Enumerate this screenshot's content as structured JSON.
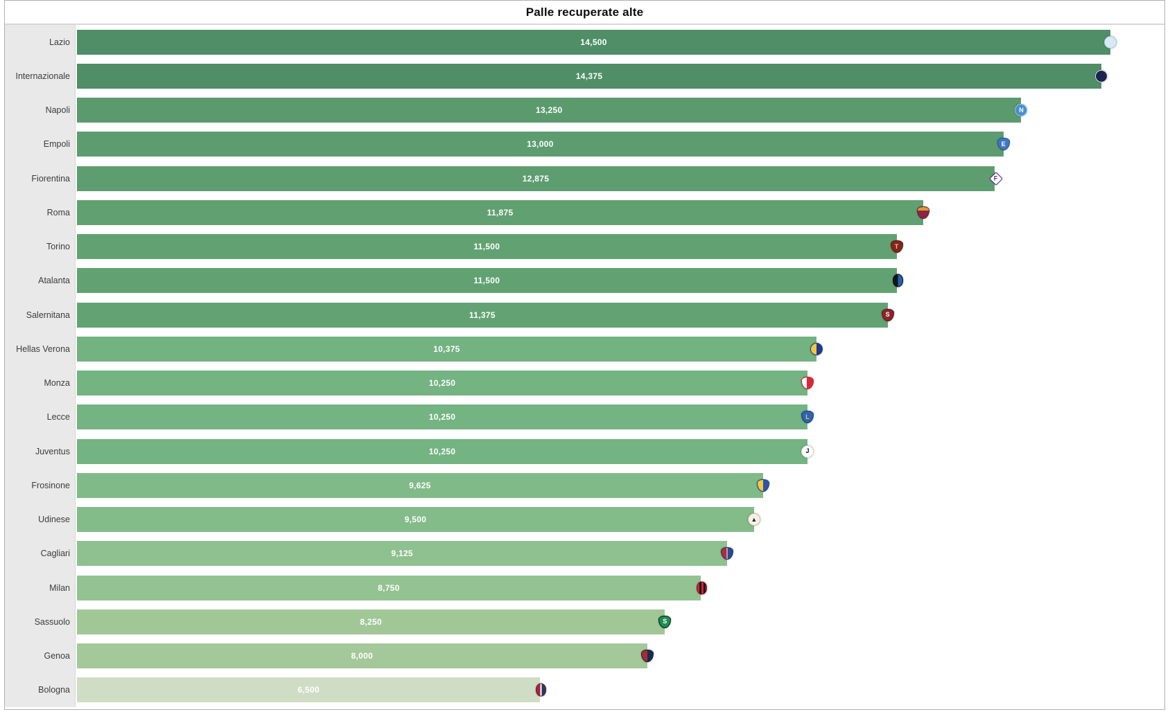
{
  "title": "Palle recuperate alte",
  "chart_data": {
    "type": "bar",
    "orientation": "horizontal",
    "title": "Palle recuperate alte",
    "categories": [
      "Lazio",
      "Internazionale",
      "Napoli",
      "Empoli",
      "Fiorentina",
      "Roma",
      "Torino",
      "Atalanta",
      "Salernitana",
      "Hellas Verona",
      "Monza",
      "Lecce",
      "Juventus",
      "Frosinone",
      "Udinese",
      "Cagliari",
      "Milan",
      "Sassuolo",
      "Genoa",
      "Bologna"
    ],
    "values": [
      14500,
      14375,
      13250,
      13000,
      12875,
      11875,
      11500,
      11500,
      11375,
      10375,
      10250,
      10250,
      10250,
      9625,
      9500,
      9125,
      8750,
      8250,
      8000,
      6500
    ],
    "value_labels": [
      "14,500",
      "14,375",
      "13,250",
      "13,000",
      "12,875",
      "11,875",
      "11,500",
      "11,500",
      "11,375",
      "10,375",
      "10,250",
      "10,250",
      "10,250",
      "9,625",
      "9,500",
      "9,125",
      "8,750",
      "8,250",
      "8,000",
      "6,500"
    ],
    "xlim": [
      0,
      14500
    ],
    "grid": false,
    "legend": "none",
    "sort": "descending",
    "value_label_position": "inside-center",
    "value_label_color": "#ffffff",
    "color_scale": {
      "high": "#4f8e66",
      "low": "#cfddc5",
      "note": "bar fill shade mapped to value, darker = higher"
    }
  },
  "teams": [
    {
      "name": "Lazio",
      "value": 14500,
      "value_label": "14,500",
      "bar_color": "#4f8e66",
      "logo": {
        "icon": "lazio-crest-icon",
        "shape": "circle",
        "background": "#d9e9f4",
        "border": "#a9cbe4",
        "letter": "",
        "letter_color": "#4a90c4"
      }
    },
    {
      "name": "Internazionale",
      "value": 14375,
      "value_label": "14,375",
      "bar_color": "#4f8e66",
      "logo": {
        "icon": "internazionale-crest-icon",
        "shape": "circle",
        "background": "#1b2350",
        "border": "#e8e6df",
        "letter": "",
        "letter_color": "#ffffff"
      }
    },
    {
      "name": "Napoli",
      "value": 13250,
      "value_label": "13,250",
      "bar_color": "#5b9a6d",
      "logo": {
        "icon": "napoli-crest-icon",
        "shape": "circle",
        "background": "#4a90cc",
        "border": "#9cc3e8",
        "letter": "N",
        "letter_color": "#ffffff"
      }
    },
    {
      "name": "Empoli",
      "value": 13000,
      "value_label": "13,000",
      "bar_color": "#5d9c6f",
      "logo": {
        "icon": "empoli-crest-icon",
        "shape": "shield",
        "background": "#3d78c2",
        "border": "#26508f",
        "letter": "E",
        "letter_color": "#ffffff"
      }
    },
    {
      "name": "Fiorentina",
      "value": 12875,
      "value_label": "12,875",
      "bar_color": "#5e9d70",
      "logo": {
        "icon": "fiorentina-crest-icon",
        "shape": "diamond",
        "background": "#ffffff",
        "border": "#5c2d84",
        "letter": "F",
        "letter_color": "#5c2d84"
      }
    },
    {
      "name": "Roma",
      "value": 11875,
      "value_label": "11,875",
      "bar_color": "#60a071",
      "logo": {
        "icon": "roma-crest-icon",
        "shape": "shield",
        "background": "linear-gradient(180deg,#d99b3a 32%,#8c2442 32%)",
        "border": "#6b1c33",
        "letter": "",
        "letter_color": "#f2d49a"
      }
    },
    {
      "name": "Torino",
      "value": 11500,
      "value_label": "11,500",
      "bar_color": "#62a272",
      "logo": {
        "icon": "torino-crest-icon",
        "shape": "shield",
        "background": "#83241f",
        "border": "#5e1713",
        "letter": "T",
        "letter_color": "#e8c87e"
      }
    },
    {
      "name": "Atalanta",
      "value": 11500,
      "value_label": "11,500",
      "bar_color": "#62a272",
      "logo": {
        "icon": "atalanta-crest-icon",
        "shape": "oval",
        "background": "linear-gradient(90deg,#11141b 50%,#2a61ad 50%)",
        "border": "#0a0d12",
        "letter": "",
        "letter_color": "#ffffff"
      }
    },
    {
      "name": "Salernitana",
      "value": 11375,
      "value_label": "11,375",
      "bar_color": "#63a373",
      "logo": {
        "icon": "salernitana-crest-icon",
        "shape": "shield",
        "background": "#8c242b",
        "border": "#5f161b",
        "letter": "S",
        "letter_color": "#ffffff"
      }
    },
    {
      "name": "Hellas Verona",
      "value": 10375,
      "value_label": "10,375",
      "bar_color": "#73b281",
      "logo": {
        "icon": "hellas-verona-crest-icon",
        "shape": "circle",
        "background": "linear-gradient(90deg,#f2c63e 50%,#24398a 50%)",
        "border": "#24398a",
        "letter": "",
        "letter_color": "#ffffff"
      }
    },
    {
      "name": "Monza",
      "value": 10250,
      "value_label": "10,250",
      "bar_color": "#74b382",
      "logo": {
        "icon": "monza-crest-icon",
        "shape": "shield",
        "background": "linear-gradient(90deg,#ffffff 45%,#d6293a 45%)",
        "border": "#c02433",
        "letter": "",
        "letter_color": "#ffffff"
      }
    },
    {
      "name": "Lecce",
      "value": 10250,
      "value_label": "10,250",
      "bar_color": "#74b382",
      "logo": {
        "icon": "lecce-crest-icon",
        "shape": "shield",
        "background": "#2d63b4",
        "border": "#17407e",
        "letter": "L",
        "letter_color": "#f3c83e"
      }
    },
    {
      "name": "Juventus",
      "value": 10250,
      "value_label": "10,250",
      "bar_color": "#74b382",
      "logo": {
        "icon": "juventus-crest-icon",
        "shape": "circle",
        "background": "#ffffff",
        "border": "#d9d9d9",
        "letter": "J",
        "letter_color": "#0a0a0a"
      }
    },
    {
      "name": "Frosinone",
      "value": 9625,
      "value_label": "9,625",
      "bar_color": "#80ba88",
      "logo": {
        "icon": "frosinone-crest-icon",
        "shape": "shield",
        "background": "linear-gradient(90deg,#f3c83e 50%,#2d55a7 50%)",
        "border": "#1e3f85",
        "letter": "",
        "letter_color": "#ffffff"
      }
    },
    {
      "name": "Udinese",
      "value": 9500,
      "value_label": "9,500",
      "bar_color": "#83bb89",
      "logo": {
        "icon": "udinese-crest-icon",
        "shape": "circle",
        "background": "#f4f1ea",
        "border": "#cfc49e",
        "letter": "▲",
        "letter_color": "#2b2b2b"
      }
    },
    {
      "name": "Cagliari",
      "value": 9125,
      "value_label": "9,125",
      "bar_color": "#8fc08f",
      "logo": {
        "icon": "cagliari-crest-icon",
        "shape": "shield",
        "background": "linear-gradient(90deg,#b5273a 46%,#ffffff 46%,#ffffff 54%,#274b8f 54%)",
        "border": "#203a6b",
        "letter": "",
        "letter_color": "#ffffff"
      }
    },
    {
      "name": "Milan",
      "value": 8750,
      "value_label": "8,750",
      "bar_color": "#94c392",
      "logo": {
        "icon": "milan-crest-icon",
        "shape": "oval",
        "background": "repeating-linear-gradient(90deg,#d42237 0,#d42237 3px,#16181d 3px,#16181d 6px)",
        "border": "#7e1120",
        "letter": "",
        "letter_color": "#ffffff"
      }
    },
    {
      "name": "Sassuolo",
      "value": 8250,
      "value_label": "8,250",
      "bar_color": "#a1c797",
      "logo": {
        "icon": "sassuolo-crest-icon",
        "shape": "shield",
        "background": "#1a9050",
        "border": "#10151c",
        "letter": "S",
        "letter_color": "#ffffff"
      }
    },
    {
      "name": "Genoa",
      "value": 8000,
      "value_label": "8,000",
      "bar_color": "#a4c899",
      "logo": {
        "icon": "genoa-crest-icon",
        "shape": "shield",
        "background": "linear-gradient(90deg,#a62b33 50%,#1b2c50 50%)",
        "border": "#101c36",
        "letter": "",
        "letter_color": "#f3c83e"
      }
    },
    {
      "name": "Bologna",
      "value": 6500,
      "value_label": "6,500",
      "bar_color": "#cfddc5",
      "logo": {
        "icon": "bologna-crest-icon",
        "shape": "oval",
        "background": "linear-gradient(90deg,#a32638 44%,#ffffff 44%,#ffffff 56%,#1d3a6d 56%)",
        "border": "#6d1626",
        "letter": "",
        "letter_color": "#ffffff"
      }
    }
  ],
  "styles": {
    "label_panel_bg": "#e9e9e9",
    "label_text_color": "#3c3c3c",
    "title_color": "#0d0d0d",
    "frame_border": "#b0b0b0",
    "title_separator": "#d8d8d8"
  }
}
